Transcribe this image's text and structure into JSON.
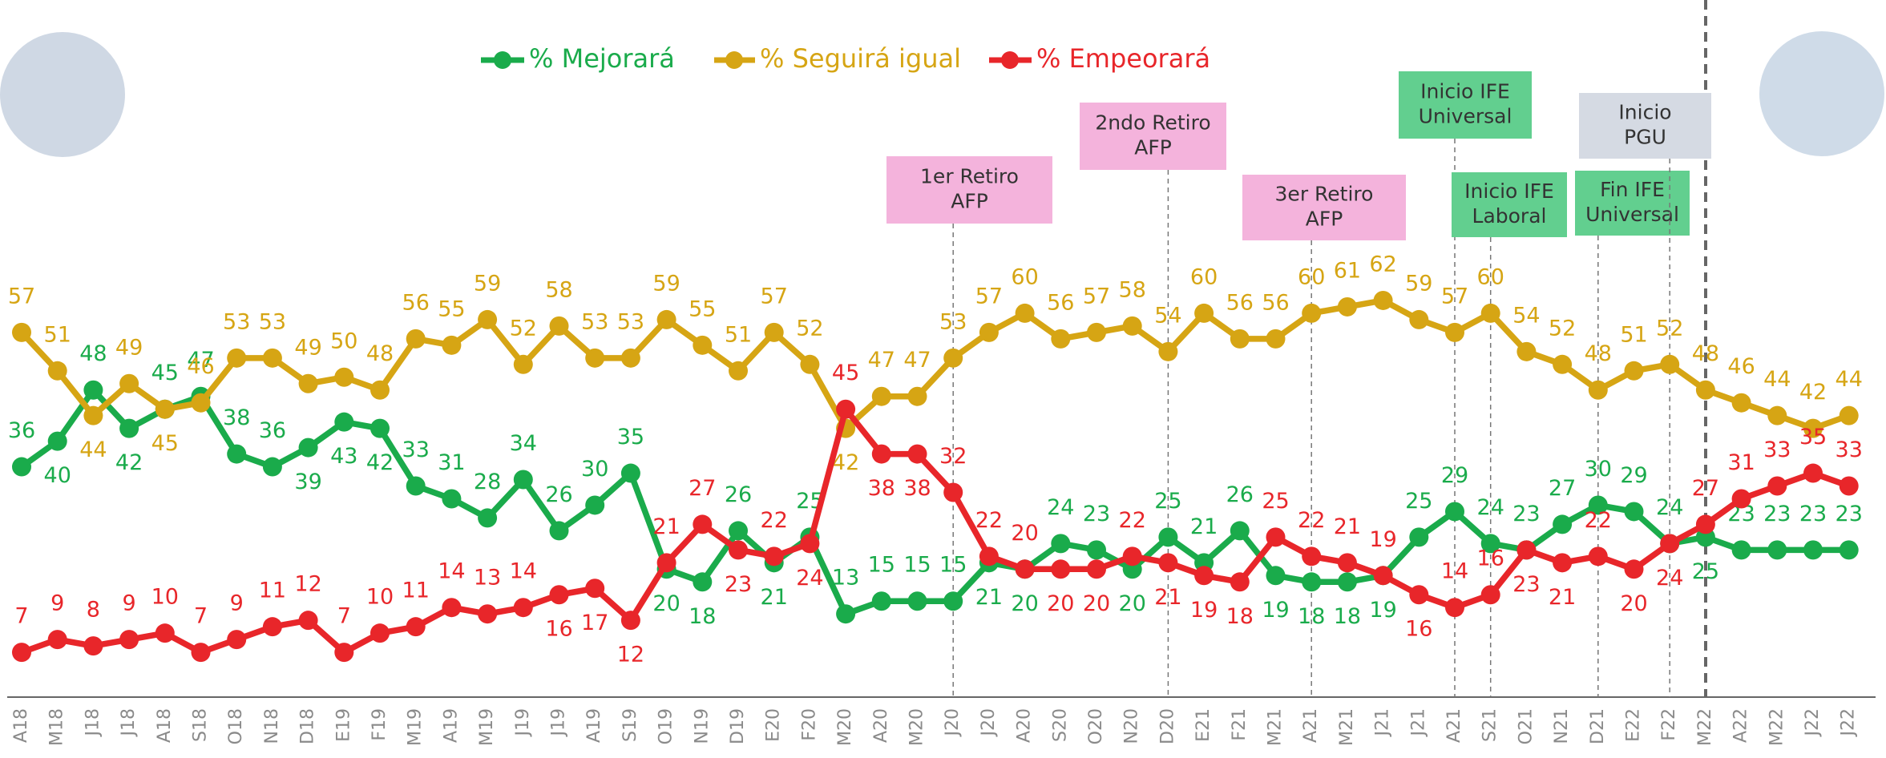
{
  "chart_data": {
    "type": "line",
    "categories": [
      "A18",
      "M18",
      "J18",
      "J18",
      "A18",
      "S18",
      "O18",
      "N18",
      "D18",
      "E19",
      "F19",
      "M19",
      "A19",
      "M19",
      "J19",
      "J19",
      "A19",
      "S19",
      "O19",
      "N19",
      "D19",
      "E20",
      "F20",
      "M20",
      "A20",
      "M20",
      "J20",
      "J20",
      "A20",
      "S20",
      "O20",
      "N20",
      "D20",
      "E21",
      "F21",
      "M21",
      "A21",
      "M21",
      "J21",
      "J21",
      "A21",
      "S21",
      "O21",
      "N21",
      "D21",
      "E22",
      "F22",
      "M22",
      "A22",
      "M22",
      "J22",
      "J22"
    ],
    "series": [
      {
        "name": "% Mejorará",
        "color": "#1aab4b",
        "values": [
          36,
          40,
          48,
          42,
          45,
          47,
          38,
          36,
          39,
          43,
          42,
          33,
          31,
          28,
          34,
          26,
          30,
          35,
          20,
          18,
          26,
          21,
          25,
          13,
          15,
          15,
          15,
          21,
          20,
          24,
          23,
          20,
          25,
          21,
          26,
          19,
          18,
          18,
          19,
          25,
          29,
          24,
          23,
          27,
          30,
          29,
          24,
          25,
          23,
          23,
          23,
          23
        ]
      },
      {
        "name": "% Seguirá igual",
        "color": "#d6a514",
        "values": [
          57,
          51,
          44,
          49,
          45,
          46,
          53,
          53,
          49,
          50,
          48,
          56,
          55,
          59,
          52,
          58,
          53,
          53,
          59,
          55,
          51,
          57,
          52,
          42,
          47,
          47,
          53,
          57,
          60,
          56,
          57,
          58,
          54,
          60,
          56,
          56,
          60,
          61,
          62,
          59,
          57,
          60,
          54,
          52,
          48,
          51,
          52,
          48,
          46,
          44,
          42,
          44
        ]
      },
      {
        "name": "% Empeorará",
        "color": "#e8262a",
        "values": [
          7,
          9,
          8,
          9,
          10,
          7,
          9,
          11,
          12,
          7,
          10,
          11,
          14,
          13,
          14,
          16,
          17,
          12,
          21,
          27,
          23,
          22,
          24,
          45,
          38,
          38,
          32,
          22,
          20,
          20,
          20,
          22,
          21,
          19,
          18,
          25,
          22,
          21,
          19,
          16,
          14,
          16,
          23,
          21,
          22,
          20,
          24,
          27,
          31,
          33,
          35,
          33
        ]
      }
    ],
    "ylim": [
      0,
      65
    ],
    "annotations": [
      {
        "text": [
          "1er Retiro",
          "AFP"
        ],
        "color": "#f4b3dc"
      },
      {
        "text": [
          "2ndo Retiro",
          "AFP"
        ],
        "color": "#f4b3dc"
      },
      {
        "text": [
          "3er Retiro",
          "AFP"
        ],
        "color": "#f4b3dc"
      },
      {
        "text": [
          "Inicio IFE",
          "Universal"
        ],
        "color": "#62cf8f"
      },
      {
        "text": [
          "Inicio IFE",
          "Laboral"
        ],
        "color": "#62cf8f"
      },
      {
        "text": [
          "Fin IFE",
          "Universal"
        ],
        "color": "#62cf8f"
      },
      {
        "text": [
          "Inicio",
          "PGU"
        ],
        "color": "#d5dae3"
      }
    ]
  }
}
